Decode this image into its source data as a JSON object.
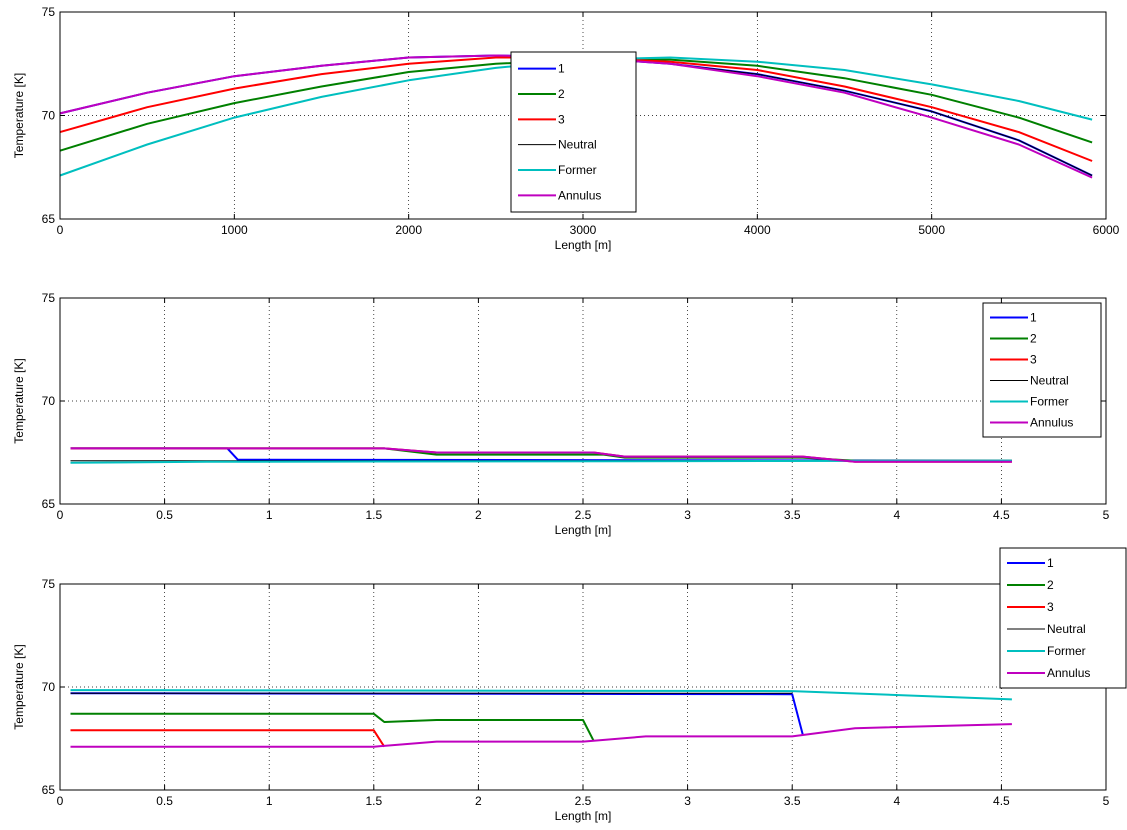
{
  "chart_data": [
    {
      "type": "line",
      "xlabel": "Length [m]",
      "ylabel": "Temperature [K]",
      "xlim": [
        0,
        6000
      ],
      "ylim": [
        65,
        75
      ],
      "xticks": [
        0,
        1000,
        2000,
        3000,
        4000,
        5000,
        6000
      ],
      "xtick_labels": [
        "0",
        "1000",
        "2000",
        "3000",
        "4000",
        "5000",
        "6000"
      ],
      "yticks": [
        65,
        70,
        75
      ],
      "ytick_labels": [
        "65",
        "70",
        "75"
      ],
      "grid": true,
      "legend_position": "center",
      "series": [
        {
          "name": "1",
          "color": "#0000ff",
          "x": [
            0,
            500,
            1000,
            1500,
            2000,
            2500,
            3000,
            3500,
            4000,
            4500,
            5000,
            5500,
            5920
          ],
          "y": [
            70.1,
            71.1,
            71.9,
            72.4,
            72.8,
            72.9,
            72.8,
            72.5,
            72.0,
            71.2,
            70.2,
            68.8,
            67.1
          ]
        },
        {
          "name": "2",
          "color": "#008000",
          "x": [
            0,
            500,
            1000,
            1500,
            2000,
            2500,
            3000,
            3500,
            4000,
            4500,
            5000,
            5500,
            5920
          ],
          "y": [
            68.3,
            69.6,
            70.6,
            71.4,
            72.1,
            72.5,
            72.7,
            72.7,
            72.4,
            71.8,
            71.0,
            69.9,
            68.7
          ]
        },
        {
          "name": "3",
          "color": "#ff0000",
          "x": [
            0,
            500,
            1000,
            1500,
            2000,
            2500,
            3000,
            3500,
            4000,
            4500,
            5000,
            5500,
            5920
          ],
          "y": [
            69.2,
            70.4,
            71.3,
            72.0,
            72.5,
            72.8,
            72.8,
            72.6,
            72.2,
            71.4,
            70.4,
            69.2,
            67.8
          ]
        },
        {
          "name": "Neutral",
          "color": "#000000",
          "x": [
            0,
            500,
            1000,
            1500,
            2000,
            2500,
            3000,
            3500,
            4000,
            4500,
            5000,
            5500,
            5920
          ],
          "y": [
            70.1,
            71.1,
            71.9,
            72.4,
            72.8,
            72.9,
            72.8,
            72.5,
            72.0,
            71.2,
            70.2,
            68.8,
            67.1
          ]
        },
        {
          "name": "Former",
          "color": "#00bfbf",
          "x": [
            0,
            500,
            1000,
            1500,
            2000,
            2500,
            3000,
            3500,
            4000,
            4500,
            5000,
            5500,
            5920
          ],
          "y": [
            67.1,
            68.6,
            69.9,
            70.9,
            71.7,
            72.3,
            72.7,
            72.8,
            72.6,
            72.2,
            71.5,
            70.7,
            69.8
          ]
        },
        {
          "name": "Annulus",
          "color": "#bf00bf",
          "x": [
            0,
            500,
            1000,
            1500,
            2000,
            2500,
            3000,
            3500,
            4000,
            4500,
            5000,
            5500,
            5920
          ],
          "y": [
            70.1,
            71.1,
            71.9,
            72.4,
            72.8,
            72.9,
            72.8,
            72.5,
            71.9,
            71.1,
            69.9,
            68.6,
            67.0
          ]
        }
      ]
    },
    {
      "type": "line",
      "xlabel": "Length [m]",
      "ylabel": "Temperature [K]",
      "xlim": [
        0,
        5
      ],
      "ylim": [
        65,
        75
      ],
      "xticks": [
        0,
        0.5,
        1,
        1.5,
        2,
        2.5,
        3,
        3.5,
        4,
        4.5,
        5
      ],
      "xtick_labels": [
        "0",
        "0.5",
        "1",
        "1.5",
        "2",
        "2.5",
        "3",
        "3.5",
        "4",
        "4.5",
        "5"
      ],
      "yticks": [
        65,
        70,
        75
      ],
      "ytick_labels": [
        "65",
        "70",
        "75"
      ],
      "grid": true,
      "legend_position": "top-right",
      "series": [
        {
          "name": "1",
          "color": "#0000ff",
          "x": [
            0.05,
            0.8,
            0.85,
            4.55
          ],
          "y": [
            67.7,
            67.7,
            67.15,
            67.1
          ]
        },
        {
          "name": "2",
          "color": "#008000",
          "x": [
            0.05,
            1.55,
            1.8,
            2.6,
            2.7,
            3.55,
            3.8,
            4.55
          ],
          "y": [
            67.7,
            67.7,
            67.4,
            67.4,
            67.25,
            67.25,
            67.1,
            67.1
          ]
        },
        {
          "name": "3",
          "color": "#ff0000",
          "x": [
            0.05,
            1.55,
            1.8,
            2.55,
            2.7,
            3.55,
            3.8,
            4.55
          ],
          "y": [
            67.7,
            67.7,
            67.5,
            67.5,
            67.3,
            67.3,
            67.05,
            67.05
          ]
        },
        {
          "name": "Neutral",
          "color": "#000000",
          "x": [
            0.05,
            4.55
          ],
          "y": [
            67.1,
            67.1
          ]
        },
        {
          "name": "Former",
          "color": "#00bfbf",
          "x": [
            0.05,
            0.7,
            4.55
          ],
          "y": [
            67.0,
            67.05,
            67.1
          ]
        },
        {
          "name": "Annulus",
          "color": "#bf00bf",
          "x": [
            0.05,
            1.55,
            1.8,
            2.55,
            2.7,
            3.55,
            3.8,
            4.55
          ],
          "y": [
            67.7,
            67.7,
            67.5,
            67.5,
            67.3,
            67.3,
            67.05,
            67.05
          ]
        }
      ]
    },
    {
      "type": "line",
      "xlabel": "Length [m]",
      "ylabel": "Temperature [K]",
      "xlim": [
        0,
        5
      ],
      "ylim": [
        65,
        75
      ],
      "xticks": [
        0,
        0.5,
        1,
        1.5,
        2,
        2.5,
        3,
        3.5,
        4,
        4.5,
        5
      ],
      "xtick_labels": [
        "0",
        "0.5",
        "1",
        "1.5",
        "2",
        "2.5",
        "3",
        "3.5",
        "4",
        "4.5",
        "5"
      ],
      "yticks": [
        65,
        70,
        75
      ],
      "ytick_labels": [
        "65",
        "70",
        "75"
      ],
      "grid": true,
      "legend_position": "top-right",
      "series": [
        {
          "name": "1",
          "color": "#0000ff",
          "x": [
            0.05,
            3.5,
            3.55
          ],
          "y": [
            69.7,
            69.65,
            67.7
          ]
        },
        {
          "name": "2",
          "color": "#008000",
          "x": [
            0.05,
            1.5,
            1.55,
            1.8,
            2.5,
            2.55
          ],
          "y": [
            68.7,
            68.7,
            68.3,
            68.4,
            68.4,
            67.4
          ]
        },
        {
          "name": "3",
          "color": "#ff0000",
          "x": [
            0.05,
            1.5,
            1.55
          ],
          "y": [
            67.9,
            67.9,
            67.1
          ]
        },
        {
          "name": "Neutral",
          "color": "#000000",
          "x": [
            0.05,
            3.5
          ],
          "y": [
            69.7,
            69.7
          ]
        },
        {
          "name": "Former",
          "color": "#00bfbf",
          "x": [
            0.05,
            3.5,
            4.55
          ],
          "y": [
            69.85,
            69.8,
            69.4
          ]
        },
        {
          "name": "Annulus",
          "color": "#bf00bf",
          "x": [
            0.05,
            1.5,
            1.8,
            2.5,
            2.8,
            3.5,
            3.8,
            4.55
          ],
          "y": [
            67.1,
            67.1,
            67.35,
            67.35,
            67.6,
            67.6,
            68.0,
            68.2
          ]
        }
      ]
    }
  ]
}
